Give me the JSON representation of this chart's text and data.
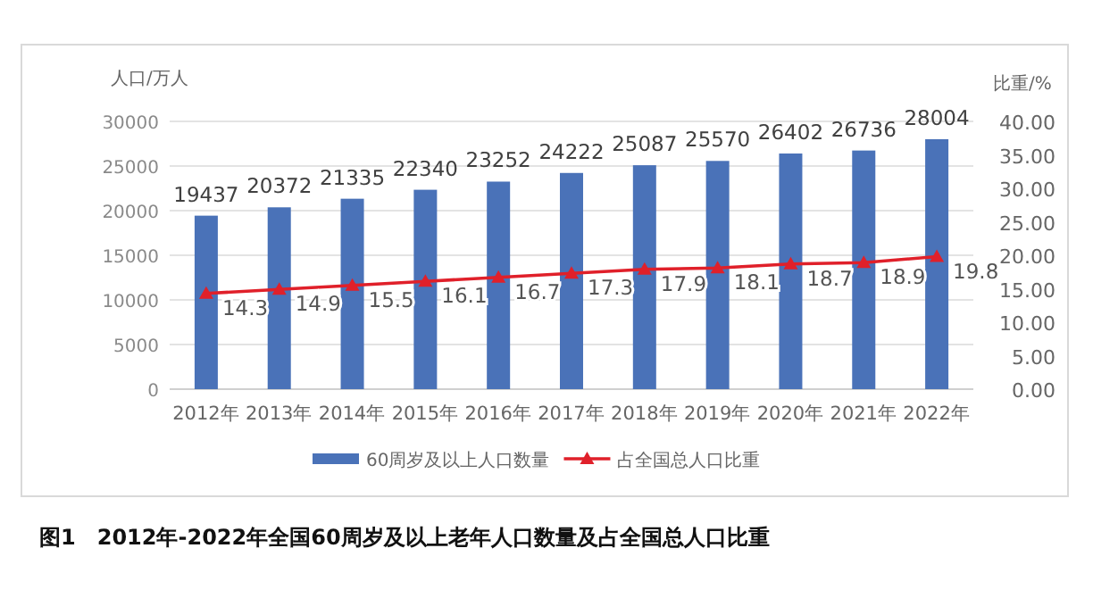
{
  "chart_data": {
    "type": "bar",
    "title": "图1　2012年-2022年全国60周岁及以上老年人口数量及占全国总人口比重",
    "ylabel": "人口/万人",
    "y2label": "比重/%",
    "categories": [
      "2012年",
      "2013年",
      "2014年",
      "2015年",
      "2016年",
      "2017年",
      "2018年",
      "2019年",
      "2020年",
      "2021年",
      "2022年"
    ],
    "series": [
      {
        "name": "60周岁及以上人口数量",
        "type": "bar",
        "color": "#4a72b8",
        "values": [
          19437,
          20372,
          21335,
          22340,
          23252,
          24222,
          25087,
          25570,
          26402,
          26736,
          28004
        ]
      },
      {
        "name": "占全国总人口比重",
        "type": "line",
        "axis": "y2",
        "color": "#e0202a",
        "marker": "triangle",
        "values": [
          14.3,
          14.9,
          15.5,
          16.1,
          16.7,
          17.3,
          17.9,
          18.1,
          18.7,
          18.9,
          19.8
        ]
      }
    ],
    "ylim": [
      0,
      30000
    ],
    "yticks": [
      0,
      5000,
      10000,
      15000,
      20000,
      25000,
      30000
    ],
    "y2lim": [
      0,
      40
    ],
    "y2ticks": [
      {
        "value": 0,
        "label": "0.00"
      },
      {
        "value": 5,
        "label": "5.00"
      },
      {
        "value": 10,
        "label": "10.00"
      },
      {
        "value": 15,
        "label": "15.00"
      },
      {
        "value": 20,
        "label": "20.00"
      },
      {
        "value": 25,
        "label": "25.00"
      },
      {
        "value": 30,
        "label": "30.00"
      },
      {
        "value": 35,
        "label": "35.00"
      },
      {
        "value": 40,
        "label": "40.00"
      }
    ],
    "grid": "y",
    "legend": "bottom",
    "data_labels": true
  }
}
